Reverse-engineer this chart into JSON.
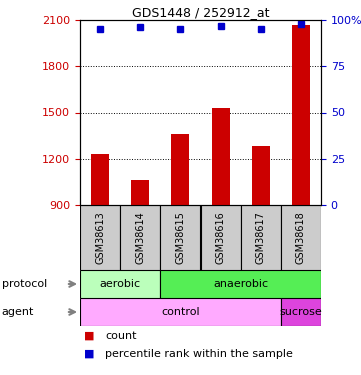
{
  "title": "GDS1448 / 252912_at",
  "samples": [
    "GSM38613",
    "GSM38614",
    "GSM38615",
    "GSM38616",
    "GSM38617",
    "GSM38618"
  ],
  "counts": [
    1230,
    1060,
    1360,
    1530,
    1280,
    2070
  ],
  "percentile_ranks": [
    95,
    96,
    95,
    97,
    95,
    98
  ],
  "ylim_left": [
    900,
    2100
  ],
  "ylim_right": [
    0,
    100
  ],
  "yticks_left": [
    900,
    1200,
    1500,
    1800,
    2100
  ],
  "yticks_right": [
    0,
    25,
    50,
    75,
    100
  ],
  "ytick_labels_left": [
    "900",
    "1200",
    "1500",
    "1800",
    "2100"
  ],
  "ytick_labels_right": [
    "0",
    "25",
    "50",
    "75",
    "100%"
  ],
  "bar_color": "#cc0000",
  "dot_color": "#0000cc",
  "protocol_groups": [
    {
      "label": "aerobic",
      "start": 0,
      "end": 2,
      "color": "#bbffbb"
    },
    {
      "label": "anaerobic",
      "start": 2,
      "end": 6,
      "color": "#55ee55"
    }
  ],
  "agent_groups": [
    {
      "label": "control",
      "start": 0,
      "end": 5,
      "color": "#ffaaff"
    },
    {
      "label": "sucrose",
      "start": 5,
      "end": 6,
      "color": "#dd44dd"
    }
  ],
  "left_label_color": "#cc0000",
  "right_label_color": "#0000cc",
  "sample_bg_color": "#cccccc",
  "legend_items": [
    {
      "marker": "s",
      "color": "#cc0000",
      "label": "count"
    },
    {
      "marker": "s",
      "color": "#0000cc",
      "label": "percentile rank within the sample"
    }
  ]
}
